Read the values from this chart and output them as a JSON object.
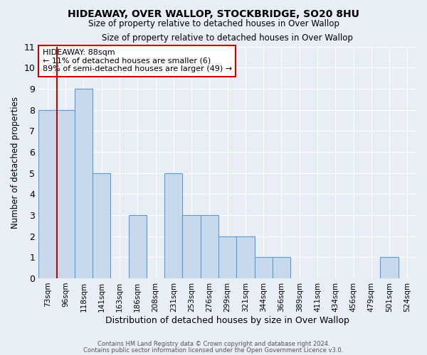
{
  "title": "HIDEAWAY, OVER WALLOP, STOCKBRIDGE, SO20 8HU",
  "subtitle": "Size of property relative to detached houses in Over Wallop",
  "xlabel": "Distribution of detached houses by size in Over Wallop",
  "ylabel": "Number of detached properties",
  "bins": [
    "73sqm",
    "96sqm",
    "118sqm",
    "141sqm",
    "163sqm",
    "186sqm",
    "208sqm",
    "231sqm",
    "253sqm",
    "276sqm",
    "299sqm",
    "321sqm",
    "344sqm",
    "366sqm",
    "389sqm",
    "411sqm",
    "434sqm",
    "456sqm",
    "479sqm",
    "501sqm",
    "524sqm"
  ],
  "values": [
    8,
    8,
    9,
    5,
    0,
    3,
    0,
    5,
    3,
    3,
    2,
    2,
    1,
    1,
    0,
    0,
    0,
    0,
    0,
    1,
    0
  ],
  "bar_color": "#c8d9ed",
  "bar_edge_color": "#5b9bd5",
  "highlight_line_color": "#cc0000",
  "annotation_text": "HIDEAWAY: 88sqm\n← 11% of detached houses are smaller (6)\n89% of semi-detached houses are larger (49) →",
  "annotation_box_edge": "#cc0000",
  "ylim": [
    0,
    11
  ],
  "yticks": [
    0,
    1,
    2,
    3,
    4,
    5,
    6,
    7,
    8,
    9,
    10,
    11
  ],
  "footer1": "Contains HM Land Registry data © Crown copyright and database right 2024.",
  "footer2": "Contains public sector information licensed under the Open Government Licence v3.0.",
  "bg_color": "#e8eef5",
  "plot_bg_color": "#e8eef5",
  "grid_color": "#ffffff"
}
